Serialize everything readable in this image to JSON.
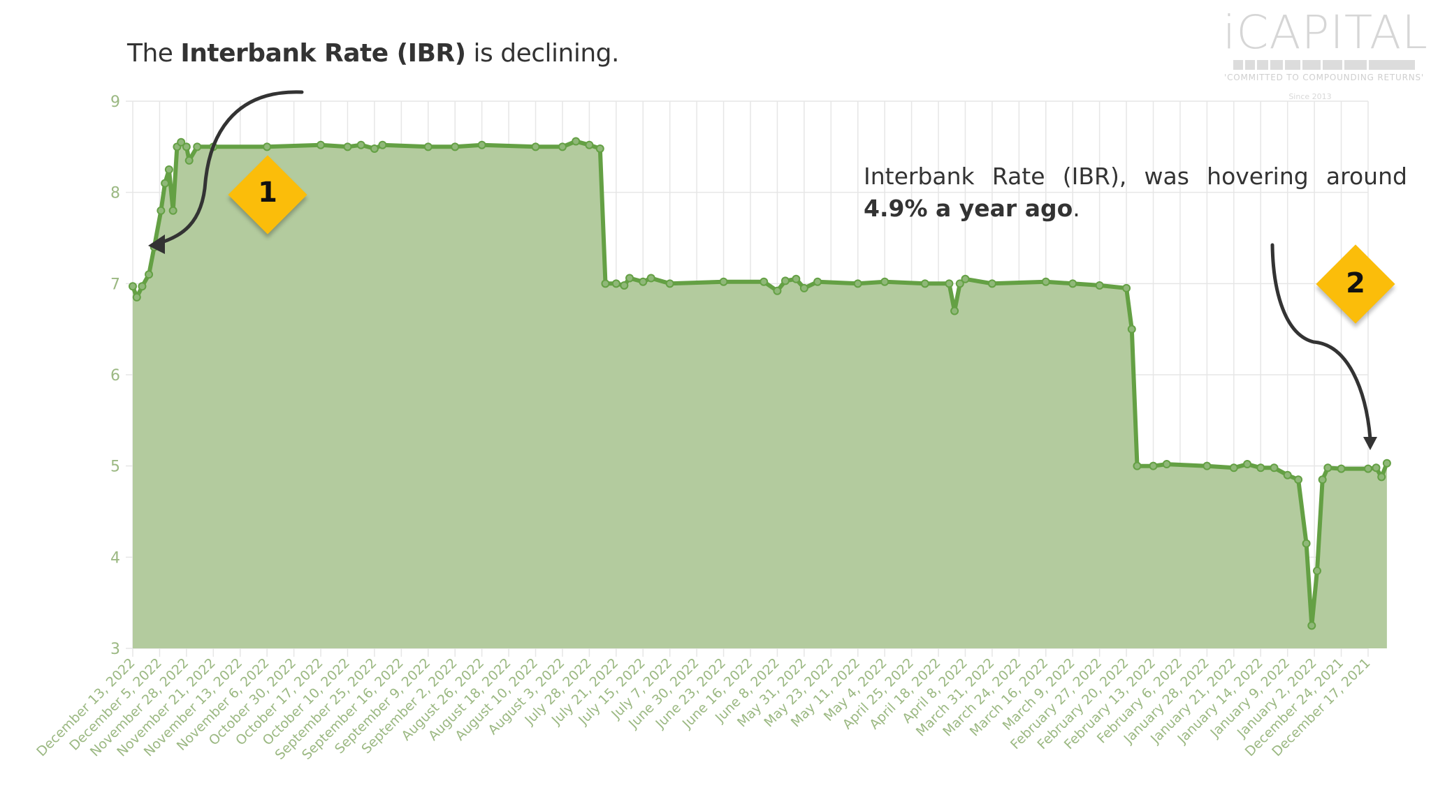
{
  "headline": {
    "prefix": "The ",
    "bold": "Interbank Rate (IBR)",
    "suffix": " is declining."
  },
  "logo": {
    "name": "iCAPITAL",
    "tagline": "'COMMITTED TO COMPOUNDING RETURNS'",
    "since": "Since 2013"
  },
  "annotation": {
    "words": [
      "Interbank",
      "Rate",
      "(IBR),",
      "was",
      "hovering",
      "around"
    ],
    "bold": "4.9% a year ago",
    "suffix": "."
  },
  "badges": [
    {
      "label": "1"
    },
    {
      "label": "2"
    }
  ],
  "colors": {
    "line": "#64a044",
    "fill": "#b3cb9e",
    "axis_text": "#9bb882",
    "grid": "#e6e6e6",
    "badge": "#fbbd0a",
    "arrow": "#333333"
  },
  "chart_data": {
    "type": "area",
    "title": "The Interbank Rate (IBR) is declining.",
    "xlabel": "",
    "ylabel": "",
    "ylim": [
      3,
      9
    ],
    "yticks": [
      3,
      4,
      5,
      6,
      7,
      8,
      9
    ],
    "grid": true,
    "legend": null,
    "categories": [
      "December 13, 2022",
      "December 5, 2022",
      "November 28, 2022",
      "November 21, 2022",
      "November 13, 2022",
      "November 6, 2022",
      "October 30, 2022",
      "October 17, 2022",
      "October 10, 2022",
      "September 25, 2022",
      "September 16, 2022",
      "September 9, 2022",
      "September 2, 2022",
      "August 26, 2022",
      "August 18, 2022",
      "August 10, 2022",
      "August 3, 2022",
      "July 28, 2022",
      "July 21, 2022",
      "July 15, 2022",
      "July 7, 2022",
      "June 30, 2022",
      "June 23, 2022",
      "June 16, 2022",
      "June 8, 2022",
      "May 31, 2022",
      "May 23, 2022",
      "May 11, 2022",
      "May 4, 2022",
      "April 25, 2022",
      "April 18, 2022",
      "April 8, 2022",
      "March 31, 2022",
      "March 24, 2022",
      "March 16, 2022",
      "March 9, 2022",
      "February 27, 2022",
      "February 20, 2022",
      "February 13, 2022",
      "February 6, 2022",
      "January 28, 2022",
      "January 21, 2022",
      "January 14, 2022",
      "January 9, 2022",
      "January 2, 2022",
      "December 24, 2021",
      "December 17, 2021"
    ],
    "series": [
      {
        "name": "Interbank Rate (IBR)",
        "points": [
          [
            0.0,
            6.97
          ],
          [
            0.15,
            6.85
          ],
          [
            0.35,
            6.97
          ],
          [
            0.6,
            7.1
          ],
          [
            0.8,
            7.4
          ],
          [
            1.05,
            7.8
          ],
          [
            1.2,
            8.1
          ],
          [
            1.35,
            8.25
          ],
          [
            1.5,
            7.8
          ],
          [
            1.65,
            8.5
          ],
          [
            1.8,
            8.55
          ],
          [
            2.0,
            8.5
          ],
          [
            2.1,
            8.35
          ],
          [
            2.4,
            8.5
          ],
          [
            3.0,
            8.5
          ],
          [
            5.0,
            8.5
          ],
          [
            7.0,
            8.52
          ],
          [
            8.0,
            8.5
          ],
          [
            8.5,
            8.52
          ],
          [
            9.0,
            8.48
          ],
          [
            9.3,
            8.52
          ],
          [
            11.0,
            8.5
          ],
          [
            12.0,
            8.5
          ],
          [
            13.0,
            8.52
          ],
          [
            15.0,
            8.5
          ],
          [
            16.0,
            8.5
          ],
          [
            16.5,
            8.56
          ],
          [
            17.0,
            8.52
          ],
          [
            17.4,
            8.48
          ],
          [
            17.6,
            7.0
          ],
          [
            18.0,
            7.0
          ],
          [
            18.3,
            6.98
          ],
          [
            18.5,
            7.06
          ],
          [
            19.0,
            7.02
          ],
          [
            19.3,
            7.06
          ],
          [
            20.0,
            7.0
          ],
          [
            22.0,
            7.02
          ],
          [
            23.5,
            7.02
          ],
          [
            24.0,
            6.92
          ],
          [
            24.3,
            7.03
          ],
          [
            24.7,
            7.05
          ],
          [
            25.0,
            6.95
          ],
          [
            25.5,
            7.02
          ],
          [
            27.0,
            7.0
          ],
          [
            28.0,
            7.02
          ],
          [
            29.5,
            7.0
          ],
          [
            30.4,
            7.0
          ],
          [
            30.6,
            6.7
          ],
          [
            30.8,
            7.0
          ],
          [
            31.0,
            7.05
          ],
          [
            32.0,
            7.0
          ],
          [
            34.0,
            7.02
          ],
          [
            35.0,
            7.0
          ],
          [
            36.0,
            6.98
          ],
          [
            37.0,
            6.95
          ],
          [
            37.2,
            6.5
          ],
          [
            37.4,
            5.0
          ],
          [
            38.0,
            5.0
          ],
          [
            38.5,
            5.02
          ],
          [
            40.0,
            5.0
          ],
          [
            41.0,
            4.98
          ],
          [
            41.5,
            5.02
          ],
          [
            42.0,
            4.98
          ],
          [
            42.5,
            4.98
          ],
          [
            43.0,
            4.9
          ],
          [
            43.4,
            4.85
          ],
          [
            43.7,
            4.15
          ],
          [
            43.9,
            3.25
          ],
          [
            44.1,
            3.85
          ],
          [
            44.3,
            4.85
          ],
          [
            44.5,
            4.98
          ],
          [
            45.0,
            4.97
          ],
          [
            46.0,
            4.97
          ],
          [
            46.3,
            4.98
          ],
          [
            46.5,
            4.88
          ],
          [
            46.7,
            5.03
          ]
        ]
      }
    ],
    "annotations": [
      {
        "badge": "1",
        "points_to": "December 5, 2022",
        "value": 7.4
      },
      {
        "badge": "2",
        "points_to": "December 17, 2021",
        "value": 5.03,
        "text": "Interbank Rate (IBR), was hovering around 4.9% a year ago."
      }
    ]
  }
}
